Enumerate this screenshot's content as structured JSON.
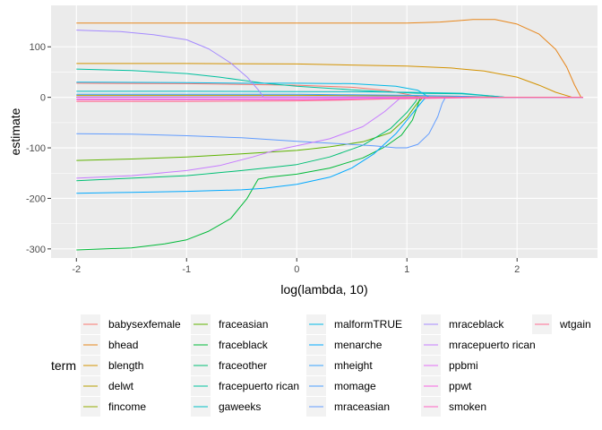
{
  "chart_data": {
    "type": "line",
    "title": "",
    "xlabel": "log(lambda, 10)",
    "ylabel": "estimate",
    "xlim": [
      -2.23,
      2.73
    ],
    "ylim": [
      -318,
      182
    ],
    "x_ticks": [
      -2,
      -1,
      0,
      1,
      2
    ],
    "x_tick_labels": [
      "-2",
      "-1",
      "0",
      "1",
      "2"
    ],
    "y_ticks": [
      -300,
      -200,
      -100,
      0,
      100
    ],
    "y_tick_labels": [
      "-300",
      "-200",
      "-100",
      "0",
      "100"
    ],
    "grid": true,
    "legend_title": "term",
    "legend_position": "bottom",
    "series": [
      {
        "name": "babysexfemale",
        "color": "#F8766D",
        "points": [
          [
            -2,
            28
          ],
          [
            -1,
            27
          ],
          [
            0,
            24
          ],
          [
            0.5,
            20
          ],
          [
            0.8,
            14
          ],
          [
            1.0,
            6
          ],
          [
            1.12,
            0
          ],
          [
            2.6,
            0
          ]
        ]
      },
      {
        "name": "bhead",
        "color": "#E7861B",
        "points": [
          [
            -2,
            147
          ],
          [
            -1,
            147
          ],
          [
            0,
            147
          ],
          [
            0.5,
            147
          ],
          [
            1.0,
            147
          ],
          [
            1.3,
            149
          ],
          [
            1.6,
            154
          ],
          [
            1.8,
            154
          ],
          [
            2.0,
            145
          ],
          [
            2.2,
            125
          ],
          [
            2.35,
            95
          ],
          [
            2.45,
            60
          ],
          [
            2.52,
            25
          ],
          [
            2.58,
            0
          ]
        ]
      },
      {
        "name": "blength",
        "color": "#D39200",
        "points": [
          [
            -2,
            67
          ],
          [
            -1,
            67
          ],
          [
            0,
            66
          ],
          [
            0.5,
            64
          ],
          [
            1.0,
            62
          ],
          [
            1.4,
            58
          ],
          [
            1.7,
            52
          ],
          [
            2.0,
            40
          ],
          [
            2.2,
            24
          ],
          [
            2.35,
            10
          ],
          [
            2.5,
            0
          ],
          [
            2.6,
            0
          ]
        ]
      },
      {
        "name": "delwt",
        "color": "#B79F00",
        "points": [
          [
            -2,
            4
          ],
          [
            -1,
            4
          ],
          [
            0,
            4
          ],
          [
            0.5,
            3.5
          ],
          [
            1.0,
            3
          ],
          [
            1.5,
            2
          ],
          [
            1.9,
            0
          ],
          [
            2.6,
            0
          ]
        ]
      },
      {
        "name": "fincome",
        "color": "#93AA00",
        "points": [
          [
            -2,
            0.3
          ],
          [
            0,
            0.3
          ],
          [
            1.0,
            0.2
          ],
          [
            1.5,
            0
          ],
          [
            2.6,
            0
          ]
        ]
      },
      {
        "name": "fraceasian",
        "color": "#5EB300",
        "points": [
          [
            -2,
            -125
          ],
          [
            -1.5,
            -122
          ],
          [
            -1,
            -118
          ],
          [
            -0.5,
            -112
          ],
          [
            0,
            -105
          ],
          [
            0.3,
            -98
          ],
          [
            0.6,
            -88
          ],
          [
            0.85,
            -70
          ],
          [
            1.0,
            -40
          ],
          [
            1.1,
            -10
          ],
          [
            1.15,
            0
          ],
          [
            2.6,
            0
          ]
        ]
      },
      {
        "name": "fraceblack",
        "color": "#00BA38",
        "points": [
          [
            -2,
            -302
          ],
          [
            -1.5,
            -298
          ],
          [
            -1.2,
            -290
          ],
          [
            -1.0,
            -282
          ],
          [
            -0.8,
            -265
          ],
          [
            -0.6,
            -240
          ],
          [
            -0.45,
            -200
          ],
          [
            -0.35,
            -162
          ],
          [
            -0.25,
            -158
          ],
          [
            0,
            -152
          ],
          [
            0.3,
            -140
          ],
          [
            0.6,
            -120
          ],
          [
            0.8,
            -98
          ],
          [
            0.95,
            -75
          ],
          [
            1.05,
            -45
          ],
          [
            1.1,
            -15
          ],
          [
            1.12,
            0
          ],
          [
            2.6,
            0
          ]
        ]
      },
      {
        "name": "fraceother",
        "color": "#00BF74",
        "points": [
          [
            -2,
            -165
          ],
          [
            -1.5,
            -160
          ],
          [
            -1.0,
            -155
          ],
          [
            -0.5,
            -145
          ],
          [
            -0.2,
            -138
          ],
          [
            0,
            -133
          ],
          [
            0.3,
            -118
          ],
          [
            0.6,
            -95
          ],
          [
            0.85,
            -62
          ],
          [
            1.0,
            -30
          ],
          [
            1.08,
            -8
          ],
          [
            1.1,
            0
          ],
          [
            2.6,
            0
          ]
        ]
      },
      {
        "name": "fracepuerto rican",
        "color": "#00C19F",
        "points": [
          [
            -2,
            56
          ],
          [
            -1.5,
            53
          ],
          [
            -1.0,
            47
          ],
          [
            -0.7,
            40
          ],
          [
            -0.5,
            34
          ],
          [
            -0.3,
            28
          ],
          [
            0,
            22
          ],
          [
            0.5,
            15
          ],
          [
            0.9,
            10
          ],
          [
            1.1,
            8
          ],
          [
            1.5,
            7
          ],
          [
            1.8,
            2
          ],
          [
            1.9,
            0
          ],
          [
            2.6,
            0
          ]
        ]
      },
      {
        "name": "gaweeks",
        "color": "#00BFC4",
        "points": [
          [
            -2,
            12
          ],
          [
            -1,
            12
          ],
          [
            0,
            11.5
          ],
          [
            0.5,
            11
          ],
          [
            1.0,
            10
          ],
          [
            1.5,
            8
          ],
          [
            1.9,
            0
          ],
          [
            2.6,
            0
          ]
        ]
      },
      {
        "name": "malformTRUE",
        "color": "#00B8E7",
        "points": [
          [
            -2,
            30
          ],
          [
            -1,
            29
          ],
          [
            -0.5,
            28
          ],
          [
            0,
            28
          ],
          [
            0.5,
            27
          ],
          [
            0.9,
            22
          ],
          [
            1.1,
            14
          ],
          [
            1.2,
            0
          ],
          [
            2.6,
            0
          ]
        ]
      },
      {
        "name": "menarche",
        "color": "#00A9FF",
        "points": [
          [
            -2,
            -190
          ],
          [
            -1.5,
            -188
          ],
          [
            -1.0,
            -186
          ],
          [
            -0.5,
            -183
          ],
          [
            -0.3,
            -180
          ],
          [
            0,
            -172
          ],
          [
            0.3,
            -158
          ],
          [
            0.5,
            -140
          ],
          [
            0.7,
            -112
          ],
          [
            0.9,
            -72
          ],
          [
            1.05,
            -32
          ],
          [
            1.15,
            -5
          ],
          [
            1.18,
            0
          ],
          [
            2.6,
            0
          ]
        ]
      },
      {
        "name": "mheight",
        "color": "#35A2FF",
        "points": [
          [
            -2,
            6
          ],
          [
            -1,
            6
          ],
          [
            0,
            6
          ],
          [
            0.5,
            5
          ],
          [
            1.0,
            4
          ],
          [
            1.5,
            2
          ],
          [
            1.8,
            0
          ],
          [
            2.6,
            0
          ]
        ]
      },
      {
        "name": "momage",
        "color": "#4B9FFF",
        "points": [
          [
            -2,
            1
          ],
          [
            0,
            1
          ],
          [
            1.0,
            0.8
          ],
          [
            1.5,
            0
          ],
          [
            2.6,
            0
          ]
        ]
      },
      {
        "name": "mraceasian",
        "color": "#619CFF",
        "points": [
          [
            -2,
            -72
          ],
          [
            -1.5,
            -73
          ],
          [
            -1.0,
            -76
          ],
          [
            -0.5,
            -80
          ],
          [
            0,
            -87
          ],
          [
            0.4,
            -92
          ],
          [
            0.7,
            -96
          ],
          [
            0.9,
            -100
          ],
          [
            1.0,
            -100
          ],
          [
            1.1,
            -93
          ],
          [
            1.2,
            -72
          ],
          [
            1.28,
            -38
          ],
          [
            1.32,
            -12
          ],
          [
            1.35,
            0
          ],
          [
            2.6,
            0
          ]
        ]
      },
      {
        "name": "mraceblack",
        "color": "#A58AFF",
        "points": [
          [
            -2,
            133
          ],
          [
            -1.6,
            130
          ],
          [
            -1.3,
            124
          ],
          [
            -1.0,
            114
          ],
          [
            -0.8,
            96
          ],
          [
            -0.6,
            68
          ],
          [
            -0.45,
            40
          ],
          [
            -0.35,
            15
          ],
          [
            -0.3,
            0
          ],
          [
            2.6,
            0
          ]
        ]
      },
      {
        "name": "mracepuerto rican",
        "color": "#C77CFF",
        "points": [
          [
            -2,
            -160
          ],
          [
            -1.5,
            -155
          ],
          [
            -1.0,
            -145
          ],
          [
            -0.7,
            -135
          ],
          [
            -0.4,
            -118
          ],
          [
            -0.2,
            -105
          ],
          [
            0,
            -96
          ],
          [
            0.3,
            -82
          ],
          [
            0.6,
            -58
          ],
          [
            0.8,
            -28
          ],
          [
            0.92,
            -5
          ],
          [
            0.95,
            0
          ],
          [
            2.6,
            0
          ]
        ]
      },
      {
        "name": "ppbmi",
        "color": "#E36EF6",
        "points": [
          [
            -2,
            -3
          ],
          [
            -1,
            -3
          ],
          [
            0,
            -3
          ],
          [
            0.5,
            -2
          ],
          [
            1.0,
            -1
          ],
          [
            1.5,
            0
          ],
          [
            2.6,
            0
          ]
        ]
      },
      {
        "name": "ppwt",
        "color": "#F564E3",
        "points": [
          [
            -2,
            0.5
          ],
          [
            0,
            0.5
          ],
          [
            1.0,
            0.3
          ],
          [
            1.5,
            0
          ],
          [
            2.6,
            0
          ]
        ]
      },
      {
        "name": "smoken",
        "color": "#FF61C3",
        "points": [
          [
            -2,
            -5
          ],
          [
            -1,
            -5
          ],
          [
            0,
            -4.5
          ],
          [
            0.5,
            -4
          ],
          [
            1.0,
            -3
          ],
          [
            1.5,
            -1
          ],
          [
            1.8,
            0
          ],
          [
            2.6,
            0
          ]
        ]
      },
      {
        "name": "wtgain",
        "color": "#FF6C91",
        "points": [
          [
            -2,
            -8
          ],
          [
            -1,
            -8
          ],
          [
            0,
            -7
          ],
          [
            0.5,
            -5
          ],
          [
            1.0,
            -2
          ],
          [
            1.4,
            0
          ],
          [
            2.6,
            0
          ]
        ]
      }
    ]
  }
}
